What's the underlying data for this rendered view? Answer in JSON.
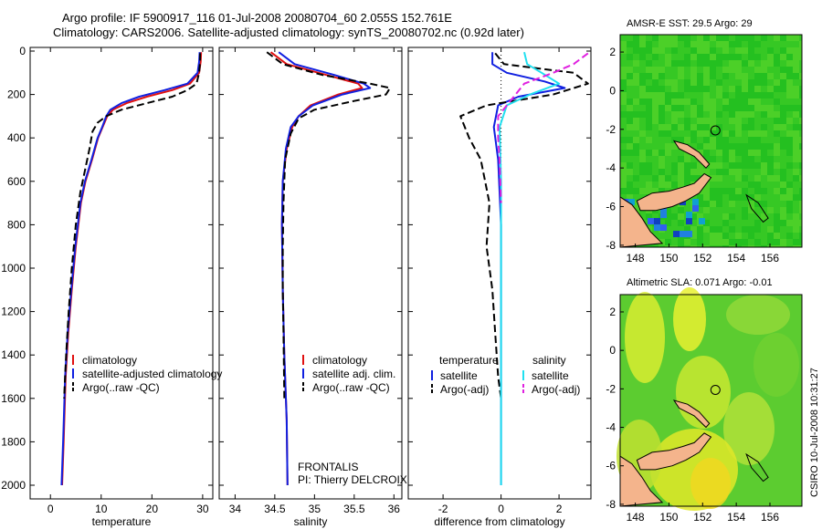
{
  "header": {
    "title_line1": "Argo profile: IF 5900917_116 01-Jul-2008 20080704_60 2.055S 152.761E",
    "title_line2": "Climatology: CARS2006. Satellite-adjusted climatology: synTS_20080702.nc (0.92d later)"
  },
  "footer": {
    "side_note": "CSIRO 10-Jul-2008 10:31:27"
  },
  "colors": {
    "climatology": "#e01010",
    "satellite": "#1020e0",
    "argo": "#000000",
    "sat_diff": "#20e0f0",
    "argo_diff": "#e020e0"
  },
  "chart_data": [
    {
      "type": "line",
      "xlabel": "temperature",
      "ylim": [
        2000,
        0
      ],
      "xlim": [
        -4,
        32
      ],
      "yticks": [
        0,
        200,
        400,
        600,
        800,
        1000,
        1200,
        1400,
        1600,
        1800,
        2000
      ],
      "xticks": [
        0,
        10,
        20,
        30
      ],
      "legend": {
        "position": "lower-right",
        "entries": [
          "climatology",
          "satellite-adjusted climatology",
          "Argo(..raw -QC)"
        ]
      },
      "series": [
        {
          "name": "climatology",
          "color": "#e01010",
          "dash": "",
          "x": [
            29.7,
            29.6,
            29.3,
            27.5,
            24,
            19,
            15,
            12.3,
            11.2,
            10.3,
            9.4,
            8.2,
            6.9,
            6,
            5,
            4.2,
            3.5,
            3,
            2.6,
            2.3
          ],
          "y": [
            5,
            50,
            100,
            150,
            180,
            210,
            240,
            270,
            300,
            350,
            400,
            500,
            600,
            700,
            900,
            1100,
            1300,
            1500,
            1800,
            2000
          ]
        },
        {
          "name": "satellite-adjusted climatology",
          "color": "#1020e0",
          "dash": "",
          "x": [
            29.4,
            29.3,
            29,
            27,
            22.5,
            17.5,
            14,
            11.8,
            11,
            10.2,
            9.3,
            8.1,
            6.8,
            5.9,
            4.9,
            4.1,
            3.4,
            2.9,
            2.5,
            2.2
          ],
          "y": [
            5,
            50,
            100,
            150,
            180,
            210,
            240,
            270,
            300,
            350,
            400,
            500,
            600,
            700,
            900,
            1100,
            1300,
            1500,
            1800,
            2000
          ]
        },
        {
          "name": "Argo(..raw -QC)",
          "color": "#000000",
          "dash": "8,4",
          "x": [
            29.5,
            29.5,
            29.3,
            28.8,
            27,
            24,
            19,
            14,
            11,
            9.3,
            8.3,
            7.7,
            6.8,
            5.9,
            5,
            4.2,
            3.6,
            3.1,
            2.7
          ],
          "y": [
            10,
            50,
            100,
            150,
            180,
            210,
            240,
            270,
            300,
            330,
            370,
            450,
            550,
            650,
            800,
            1000,
            1200,
            1400,
            1600
          ]
        }
      ]
    },
    {
      "type": "line",
      "xlabel": "salinity",
      "ylim": [
        2000,
        0
      ],
      "xlim": [
        33.8,
        36.1
      ],
      "xticks": [
        34,
        34.5,
        35,
        35.5,
        36
      ],
      "legend": {
        "position": "lower-right",
        "entries": [
          "climatology",
          "satellite adj. clim.",
          "Argo(..raw -QC)"
        ]
      },
      "annotation": {
        "line1": "FRONTALIS",
        "line2": "PI: Thierry DELCROIX"
      },
      "series": [
        {
          "name": "climatology",
          "color": "#e01010",
          "dash": "",
          "x": [
            34.45,
            34.65,
            35.15,
            35.55,
            35.6,
            35.3,
            34.95,
            34.8,
            34.72,
            34.65,
            34.6,
            34.59,
            34.6,
            34.62,
            34.65,
            34.66
          ],
          "y": [
            5,
            60,
            110,
            150,
            170,
            200,
            250,
            300,
            350,
            450,
            600,
            800,
            1100,
            1400,
            1700,
            2000
          ]
        },
        {
          "name": "satellite adj. clim.",
          "color": "#1020e0",
          "dash": "",
          "x": [
            34.55,
            34.75,
            35.25,
            35.62,
            35.7,
            35.35,
            34.98,
            34.8,
            34.7,
            34.64,
            34.6,
            34.59,
            34.6,
            34.62,
            34.65,
            34.66
          ],
          "y": [
            5,
            60,
            110,
            150,
            170,
            200,
            250,
            300,
            350,
            450,
            600,
            800,
            1100,
            1400,
            1700,
            2000
          ]
        },
        {
          "name": "Argo(..raw -QC)",
          "color": "#000000",
          "dash": "8,4",
          "x": [
            34.4,
            34.6,
            35.1,
            35.7,
            35.95,
            35.9,
            35.5,
            35.0,
            34.8,
            34.7,
            34.63,
            34.61,
            34.6,
            34.6,
            34.61,
            34.62
          ],
          "y": [
            5,
            60,
            110,
            150,
            170,
            200,
            230,
            270,
            310,
            380,
            500,
            700,
            900,
            1100,
            1300,
            1600
          ]
        }
      ]
    },
    {
      "type": "line",
      "xlabel": "difference from climatology",
      "ylim": [
        2000,
        0
      ],
      "xlim": [
        -3.2,
        3.1
      ],
      "xticks": [
        -2,
        0,
        2
      ],
      "legend": {
        "position": "lower-center",
        "headers": [
          "temperature",
          "salinity"
        ],
        "entries": [
          "satellite",
          "Argo(-adj)",
          "satellite",
          "Argo(-adj)"
        ]
      },
      "series": [
        {
          "name": "temperature satellite",
          "color": "#1020e0",
          "dash": "",
          "x": [
            -0.3,
            -0.3,
            0.2,
            1.5,
            2.2,
            0.6,
            -0.1,
            -0.25,
            -0.1,
            0,
            0
          ],
          "y": [
            5,
            60,
            100,
            140,
            170,
            210,
            250,
            350,
            500,
            800,
            2000
          ]
        },
        {
          "name": "temperature Argo(-adj)",
          "color": "#000000",
          "dash": "8,4",
          "x": [
            -0.2,
            0.1,
            2.5,
            3.0,
            1.8,
            -0.5,
            -1.4,
            -1.1,
            -0.7,
            -0.4,
            -0.5,
            -0.3,
            -0.2,
            -0.1,
            0
          ],
          "y": [
            10,
            60,
            100,
            150,
            200,
            250,
            300,
            400,
            500,
            700,
            900,
            1100,
            1300,
            1500,
            1600
          ]
        },
        {
          "name": "salinity satellite",
          "color": "#20e0f0",
          "dash": "",
          "x": [
            0.8,
            0.9,
            1.4,
            2.0,
            1.0,
            0.2,
            -0.05,
            0,
            0
          ],
          "y": [
            5,
            60,
            100,
            150,
            200,
            250,
            350,
            600,
            2000
          ]
        },
        {
          "name": "salinity Argo(-adj)",
          "color": "#e020e0",
          "dash": "8,4",
          "x": [
            3.0,
            2.5,
            1.8,
            0.8,
            0.5,
            0.2,
            -0.1,
            -0.1,
            -0.05,
            0
          ],
          "y": [
            10,
            60,
            100,
            150,
            200,
            250,
            300,
            400,
            500,
            700
          ]
        }
      ]
    }
  ],
  "maps": [
    {
      "title": "AMSR-E SST: 29.5 Argo: 29",
      "xticks": [
        "148",
        "150",
        "152",
        "154",
        "156"
      ],
      "yticks": [
        "2",
        "0",
        "-2",
        "-4",
        "-6",
        "-8"
      ]
    },
    {
      "title": "Altimetric SLA: 0.071 Argo: -0.01",
      "xticks": [
        "148",
        "150",
        "152",
        "154",
        "156"
      ],
      "yticks": [
        "2",
        "0",
        "-2",
        "-4",
        "-6",
        "-8"
      ]
    }
  ]
}
